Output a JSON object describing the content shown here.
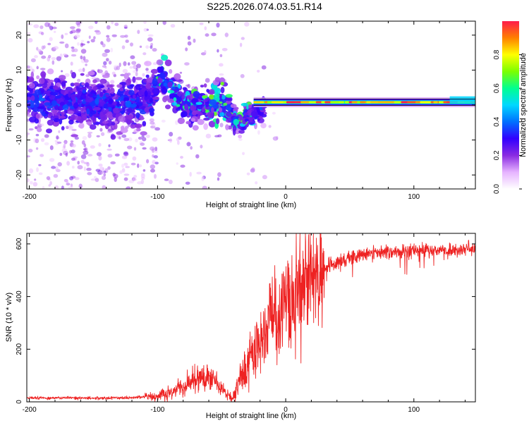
{
  "title": "S225.2026.074.03.51.R14",
  "chart_data": [
    {
      "type": "heatmap",
      "title": "S225.2026.074.03.51.R14",
      "xlabel": "Height of straight line (km)",
      "ylabel": "Frequency (Hz)",
      "xlim": [
        -202,
        148
      ],
      "ylim": [
        -24,
        24
      ],
      "xticks": [
        -200,
        -100,
        0,
        100
      ],
      "yticks": [
        -20,
        -10,
        0,
        10,
        20
      ],
      "colorbar": {
        "label": "Normalized spectral amplitude",
        "range": [
          0,
          1
        ],
        "ticks": [
          "0.0",
          "0.2",
          "0.4",
          "0.6",
          "0.8"
        ],
        "colors": [
          "#ffffff",
          "#e6b3ff",
          "#8a2be2",
          "#3200ff",
          "#0070ff",
          "#00d8ff",
          "#00ff90",
          "#7cff00",
          "#ffff00",
          "#ff8000",
          "#ff1b4a"
        ]
      },
      "features": {
        "noisy_band_center_hz": [
          [
            -200,
            2
          ],
          [
            -180,
            1
          ],
          [
            -160,
            1
          ],
          [
            -140,
            0
          ],
          [
            -120,
            0
          ],
          [
            -105,
            2
          ],
          [
            -98,
            8
          ],
          [
            -90,
            5
          ],
          [
            -80,
            0
          ],
          [
            -70,
            0
          ],
          [
            -60,
            0
          ],
          [
            -50,
            2
          ],
          [
            -45,
            -1
          ],
          [
            -40,
            -4
          ],
          [
            -35,
            -5
          ],
          [
            -30,
            -3
          ],
          [
            -20,
            -1
          ],
          [
            -10,
            0
          ],
          [
            0,
            1
          ],
          [
            20,
            0.8
          ],
          [
            60,
            0.8
          ],
          [
            100,
            0.8
          ],
          [
            148,
            1.5
          ]
        ],
        "coherent_tone_start_km": -25,
        "coherent_tone_hz": 0.8
      }
    },
    {
      "type": "line",
      "xlabel": "Height of straight line (km)",
      "ylabel": "SNR (10 * v/v)",
      "xlim": [
        -202,
        148
      ],
      "ylim": [
        0,
        640
      ],
      "xticks": [
        -200,
        -100,
        0,
        100
      ],
      "yticks": [
        0,
        200,
        400,
        600
      ],
      "series": [
        {
          "name": "SNR",
          "color": "#ee2222",
          "trend": [
            [
              -202,
              15
            ],
            [
              -150,
              15
            ],
            [
              -120,
              16
            ],
            [
              -100,
              20
            ],
            [
              -90,
              35
            ],
            [
              -80,
              60
            ],
            [
              -70,
              85
            ],
            [
              -60,
              100
            ],
            [
              -55,
              75
            ],
            [
              -50,
              45
            ],
            [
              -45,
              25
            ],
            [
              -42,
              15
            ],
            [
              -40,
              35
            ],
            [
              -35,
              90
            ],
            [
              -30,
              140
            ],
            [
              -25,
              175
            ],
            [
              -20,
              210
            ],
            [
              -15,
              270
            ],
            [
              -10,
              320
            ],
            [
              -5,
              350
            ],
            [
              0,
              370
            ],
            [
              5,
              390
            ],
            [
              10,
              430
            ],
            [
              15,
              450
            ],
            [
              20,
              470
            ],
            [
              25,
              490
            ],
            [
              30,
              505
            ],
            [
              40,
              530
            ],
            [
              50,
              550
            ],
            [
              60,
              560
            ],
            [
              70,
              565
            ],
            [
              80,
              570
            ],
            [
              90,
              572
            ],
            [
              100,
              575
            ],
            [
              120,
              577
            ],
            [
              148,
              580
            ]
          ]
        }
      ]
    }
  ]
}
